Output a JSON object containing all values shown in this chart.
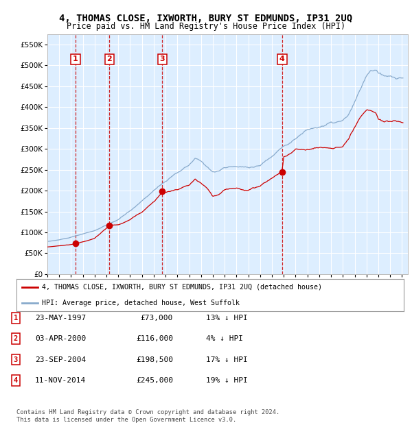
{
  "title": "4, THOMAS CLOSE, IXWORTH, BURY ST EDMUNDS, IP31 2UQ",
  "subtitle": "Price paid vs. HM Land Registry's House Price Index (HPI)",
  "sale_labels": [
    "1",
    "2",
    "3",
    "4"
  ],
  "sale_years_num": [
    1997.38,
    2000.25,
    2004.72,
    2014.86
  ],
  "sale_prices": [
    73000,
    116000,
    198500,
    245000
  ],
  "legend_label_red": "4, THOMAS CLOSE, IXWORTH, BURY ST EDMUNDS, IP31 2UQ (detached house)",
  "legend_label_blue": "HPI: Average price, detached house, West Suffolk",
  "table_rows": [
    [
      "1",
      "23-MAY-1997",
      "£73,000",
      "13% ↓ HPI"
    ],
    [
      "2",
      "03-APR-2000",
      "£116,000",
      "4% ↓ HPI"
    ],
    [
      "3",
      "23-SEP-2004",
      "£198,500",
      "17% ↓ HPI"
    ],
    [
      "4",
      "11-NOV-2014",
      "£245,000",
      "19% ↓ HPI"
    ]
  ],
  "footer": "Contains HM Land Registry data © Crown copyright and database right 2024.\nThis data is licensed under the Open Government Licence v3.0.",
  "red_color": "#cc0000",
  "blue_color": "#88aacc",
  "bg_color": "#ddeeff",
  "grid_color": "#ffffff",
  "ylim": [
    0,
    575000
  ],
  "yticks": [
    0,
    50000,
    100000,
    150000,
    200000,
    250000,
    300000,
    350000,
    400000,
    450000,
    500000,
    550000
  ],
  "xlim": [
    1995.0,
    2025.5
  ]
}
